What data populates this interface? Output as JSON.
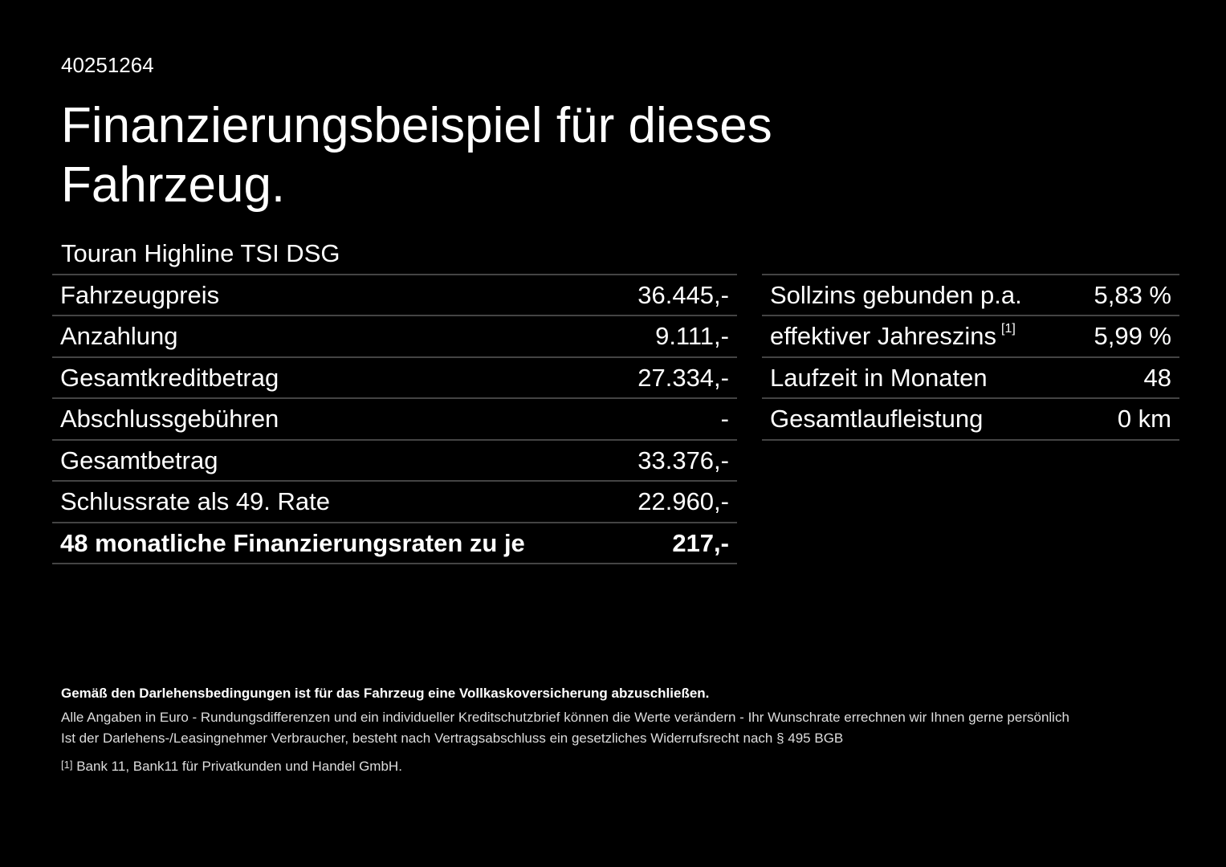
{
  "header": {
    "id": "40251264",
    "title_line1": "Finanzierungsbeispiel für dieses",
    "title_line2": "Fahrzeug."
  },
  "model": "Touran Highline TSI DSG",
  "left_table": {
    "rows": [
      [
        "Fahrzeugpreis",
        "36.445,-"
      ],
      [
        "Anzahlung",
        "9.111,-"
      ],
      [
        "Gesamtkreditbetrag",
        "27.334,-"
      ],
      [
        "Abschlussgebühren",
        "-"
      ],
      [
        "Gesamtbetrag",
        "33.376,-"
      ],
      [
        "Schlussrate als 49. Rate",
        "22.960,-"
      ],
      [
        "48 monatliche Finanzierungsraten zu je",
        "217,-"
      ]
    ]
  },
  "right_table": {
    "rows": [
      [
        "Sollzins gebunden p.a.",
        "5,83 %"
      ],
      [
        "effektiver Jahreszins",
        "5,99 %"
      ],
      [
        "Laufzeit in Monaten",
        "48"
      ],
      [
        "Gesamtlaufleistung",
        "0 km"
      ]
    ],
    "footnote_ref": "[1]"
  },
  "notes": {
    "bold": "Gemäß den Darlehensbedingungen ist für das Fahrzeug eine Vollkaskoversicherung abzuschließen.",
    "line1": "Alle Angaben in Euro - Rundungsdifferenzen und ein individueller Kreditschutzbrief können die Werte verändern - Ihr Wunschrate errechnen wir Ihnen gerne persönlich",
    "line2": "Ist der Darlehens-/Leasingnehmer Verbraucher, besteht nach Vertragsabschluss ein gesetzliches Widerrufsrecht nach § 495 BGB",
    "footnote_mark": "[1]",
    "footnote": "Bank 11, Bank11 für Privatkunden und Handel GmbH."
  }
}
